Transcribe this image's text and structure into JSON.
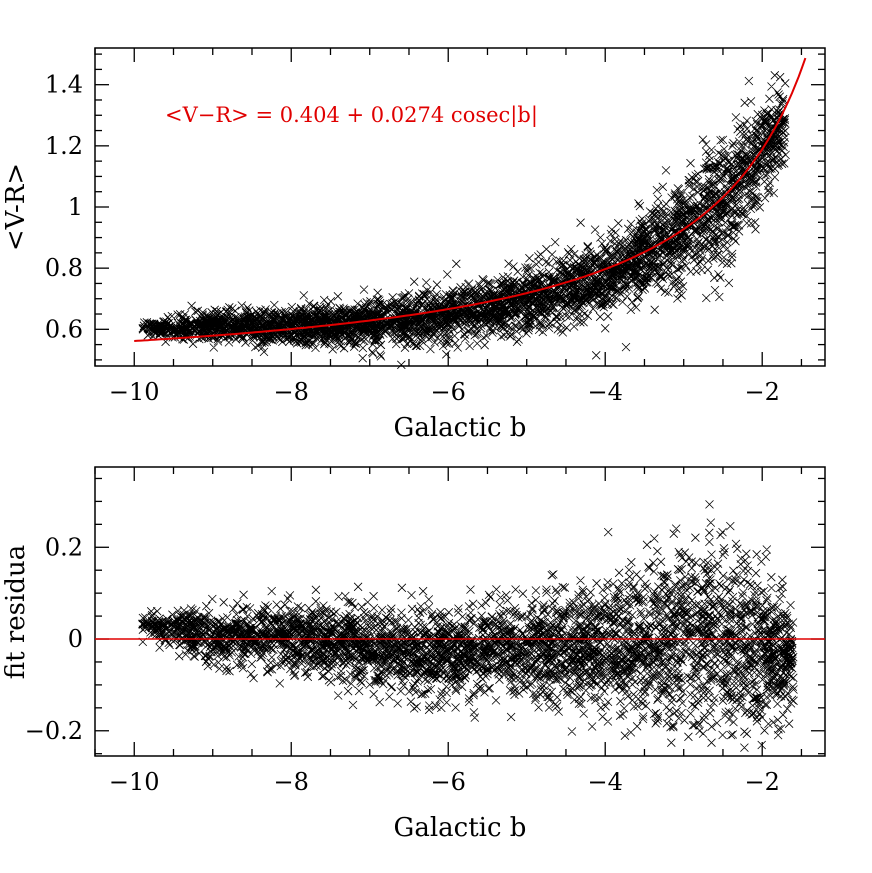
{
  "chart_data": [
    {
      "type": "scatter",
      "name": "top-panel",
      "xlabel": "Galactic b",
      "ylabel": "<V-R>",
      "xlim": [
        -10.5,
        -1.2
      ],
      "ylim": [
        0.48,
        1.52
      ],
      "xticks": [
        -10,
        -8,
        -6,
        -4,
        -2
      ],
      "xtick_labels": [
        "−10",
        "−8",
        "−6",
        "−4",
        "−2"
      ],
      "yticks": [
        0.6,
        0.8,
        1.0,
        1.2,
        1.4
      ],
      "ytick_labels": [
        "0.6",
        "0.8",
        "1",
        "1.2",
        "1.4"
      ],
      "marker": "x",
      "point_color": "#000000",
      "fit": {
        "label": "<V−R> = 0.404 + 0.0274 cosec|b|",
        "a": 0.404,
        "b": 0.0274,
        "x_range": [
          -10,
          -1.45
        ],
        "color": "#e00000"
      },
      "scatter_band": {
        "x": [
          -9.9,
          -9,
          -8,
          -7,
          -6,
          -5,
          -4,
          -3,
          -2.5,
          -2,
          -1.7
        ],
        "center": [
          0.6,
          0.61,
          0.61,
          0.62,
          0.65,
          0.69,
          0.77,
          0.92,
          1.02,
          1.18,
          1.28
        ],
        "half_width": [
          0.02,
          0.04,
          0.05,
          0.06,
          0.07,
          0.08,
          0.1,
          0.14,
          0.16,
          0.14,
          0.1
        ]
      },
      "point_count": 4000
    },
    {
      "type": "scatter",
      "name": "bottom-panel",
      "xlabel": "Galactic b",
      "ylabel": "fit residua",
      "xlim": [
        -10.5,
        -1.2
      ],
      "ylim": [
        -0.255,
        0.375
      ],
      "xticks": [
        -10,
        -8,
        -6,
        -4,
        -2
      ],
      "xtick_labels": [
        "−10",
        "−8",
        "−6",
        "−4",
        "−2"
      ],
      "yticks": [
        -0.2,
        0,
        0.2
      ],
      "ytick_labels": [
        "−0.2",
        "0",
        "0.2"
      ],
      "marker": "x",
      "point_color": "#000000",
      "zero_line": {
        "y": 0,
        "color": "#e00000"
      },
      "scatter_band": {
        "x": [
          -9.9,
          -9,
          -8,
          -7,
          -6,
          -5,
          -4,
          -3,
          -2.5,
          -2,
          -1.6
        ],
        "center": [
          0.03,
          0.01,
          0.0,
          -0.02,
          -0.03,
          -0.02,
          -0.02,
          0.0,
          0.0,
          -0.02,
          -0.03
        ],
        "half_width": [
          0.02,
          0.05,
          0.06,
          0.07,
          0.08,
          0.09,
          0.11,
          0.16,
          0.18,
          0.14,
          0.08
        ]
      },
      "point_count": 4000
    }
  ]
}
